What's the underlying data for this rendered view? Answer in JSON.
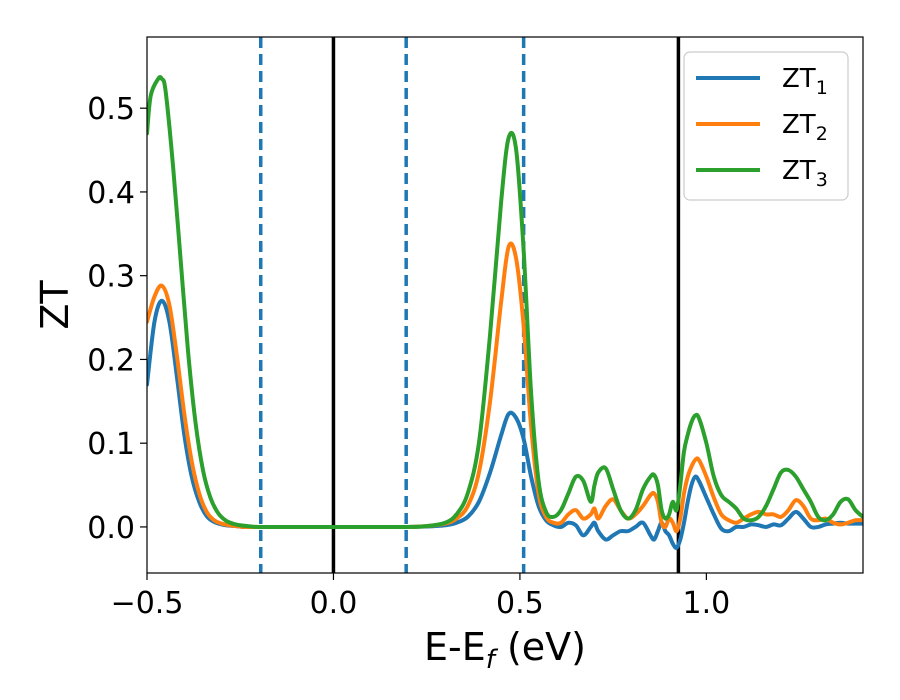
{
  "chart_data": {
    "type": "line",
    "xlabel": "E-E",
    "xlabel_sub": "f",
    "xlabel_tail": " (eV)",
    "ylabel": "ZT",
    "xlim": [
      -0.5,
      1.42
    ],
    "ylim": [
      -0.055,
      0.585
    ],
    "xticks": [
      -0.5,
      0.0,
      0.5,
      1.0
    ],
    "xtick_labels": [
      "−0.5",
      "0.0",
      "0.5",
      "1.0"
    ],
    "yticks": [
      0.0,
      0.1,
      0.2,
      0.3,
      0.4,
      0.5
    ],
    "ytick_labels": [
      "0.0",
      "0.1",
      "0.2",
      "0.3",
      "0.4",
      "0.5"
    ],
    "grid": false,
    "legend_position": "top-right",
    "vlines": [
      {
        "x": -0.195,
        "style": "dashed",
        "color": "#1f77b4"
      },
      {
        "x": 0.0,
        "style": "solid",
        "color": "#000000"
      },
      {
        "x": 0.195,
        "style": "dashed",
        "color": "#1f77b4"
      },
      {
        "x": 0.51,
        "style": "dashed",
        "color": "#1f77b4"
      },
      {
        "x": 0.925,
        "style": "solid",
        "color": "#000000"
      }
    ],
    "series": [
      {
        "name": "ZT",
        "name_sub": "1",
        "color": "#1f77b4",
        "x": [
          -0.5,
          -0.48,
          -0.46,
          -0.44,
          -0.42,
          -0.4,
          -0.38,
          -0.36,
          -0.34,
          -0.32,
          -0.3,
          -0.28,
          -0.26,
          -0.24,
          -0.2,
          -0.1,
          0.0,
          0.1,
          0.2,
          0.25,
          0.3,
          0.33,
          0.36,
          0.39,
          0.42,
          0.45,
          0.47,
          0.49,
          0.51,
          0.53,
          0.55,
          0.57,
          0.59,
          0.61,
          0.63,
          0.65,
          0.67,
          0.69,
          0.7,
          0.71,
          0.73,
          0.75,
          0.77,
          0.79,
          0.81,
          0.83,
          0.85,
          0.86,
          0.87,
          0.88,
          0.89,
          0.9,
          0.91,
          0.92,
          0.93,
          0.94,
          0.95,
          0.96,
          0.97,
          0.98,
          1.0,
          1.02,
          1.04,
          1.06,
          1.08,
          1.1,
          1.12,
          1.14,
          1.16,
          1.18,
          1.2,
          1.22,
          1.24,
          1.26,
          1.28,
          1.3,
          1.32,
          1.34,
          1.36,
          1.38,
          1.4,
          1.42
        ],
        "y": [
          0.17,
          0.245,
          0.27,
          0.245,
          0.18,
          0.11,
          0.06,
          0.03,
          0.013,
          0.006,
          0.003,
          0.0015,
          0.001,
          0.0,
          0.0,
          0.0,
          0.0,
          0.0,
          0.0,
          0.0005,
          0.002,
          0.005,
          0.012,
          0.03,
          0.065,
          0.11,
          0.135,
          0.13,
          0.105,
          0.06,
          0.025,
          0.008,
          0.002,
          0.0,
          0.005,
          0.002,
          -0.01,
          0.0,
          0.005,
          -0.005,
          -0.015,
          -0.01,
          -0.005,
          -0.005,
          0.0,
          0.005,
          -0.01,
          -0.015,
          -0.005,
          0.005,
          -0.005,
          -0.01,
          -0.02,
          -0.025,
          -0.015,
          0.005,
          0.03,
          0.05,
          0.06,
          0.055,
          0.035,
          0.015,
          -0.002,
          -0.005,
          0.0,
          0.0,
          0.003,
          0.002,
          0.0,
          0.003,
          0.002,
          0.01,
          0.018,
          0.01,
          0.0,
          0.0,
          0.003,
          0.004,
          0.005,
          0.004,
          0.004,
          0.004
        ]
      },
      {
        "name": "ZT",
        "name_sub": "2",
        "color": "#ff7f0e",
        "x": [
          -0.5,
          -0.48,
          -0.46,
          -0.44,
          -0.42,
          -0.4,
          -0.38,
          -0.36,
          -0.34,
          -0.32,
          -0.3,
          -0.28,
          -0.26,
          -0.24,
          -0.2,
          -0.1,
          0.0,
          0.1,
          0.2,
          0.25,
          0.3,
          0.33,
          0.36,
          0.39,
          0.42,
          0.45,
          0.47,
          0.49,
          0.51,
          0.53,
          0.55,
          0.57,
          0.59,
          0.61,
          0.63,
          0.65,
          0.67,
          0.69,
          0.7,
          0.71,
          0.73,
          0.75,
          0.77,
          0.79,
          0.81,
          0.83,
          0.85,
          0.86,
          0.87,
          0.88,
          0.89,
          0.9,
          0.91,
          0.92,
          0.93,
          0.94,
          0.95,
          0.96,
          0.97,
          0.98,
          1.0,
          1.02,
          1.04,
          1.06,
          1.08,
          1.1,
          1.12,
          1.14,
          1.16,
          1.18,
          1.2,
          1.22,
          1.24,
          1.26,
          1.28,
          1.3,
          1.32,
          1.34,
          1.36,
          1.38,
          1.4,
          1.42
        ],
        "y": [
          0.245,
          0.275,
          0.288,
          0.265,
          0.205,
          0.135,
          0.078,
          0.04,
          0.018,
          0.008,
          0.004,
          0.002,
          0.001,
          0.0,
          0.0,
          0.0,
          0.0,
          0.0,
          0.0,
          0.001,
          0.004,
          0.01,
          0.025,
          0.065,
          0.15,
          0.27,
          0.335,
          0.32,
          0.24,
          0.12,
          0.04,
          0.012,
          0.005,
          0.005,
          0.015,
          0.02,
          0.01,
          0.015,
          0.022,
          0.01,
          0.025,
          0.033,
          0.02,
          0.01,
          0.015,
          0.025,
          0.038,
          0.04,
          0.03,
          0.005,
          0.0,
          0.01,
          0.005,
          -0.005,
          0.01,
          0.04,
          0.06,
          0.072,
          0.08,
          0.08,
          0.06,
          0.035,
          0.015,
          0.008,
          0.005,
          0.01,
          0.015,
          0.018,
          0.015,
          0.015,
          0.012,
          0.02,
          0.032,
          0.025,
          0.01,
          0.008,
          0.01,
          0.005,
          0.003,
          0.005,
          0.008,
          0.008
        ]
      },
      {
        "name": "ZT",
        "name_sub": "3",
        "color": "#2ca02c",
        "x": [
          -0.5,
          -0.49,
          -0.47,
          -0.46,
          -0.45,
          -0.43,
          -0.41,
          -0.39,
          -0.37,
          -0.35,
          -0.33,
          -0.31,
          -0.29,
          -0.27,
          -0.25,
          -0.23,
          -0.2,
          -0.1,
          0.0,
          0.1,
          0.2,
          0.25,
          0.3,
          0.33,
          0.36,
          0.39,
          0.42,
          0.45,
          0.47,
          0.49,
          0.51,
          0.53,
          0.55,
          0.57,
          0.59,
          0.61,
          0.63,
          0.65,
          0.67,
          0.69,
          0.7,
          0.71,
          0.73,
          0.75,
          0.77,
          0.79,
          0.81,
          0.83,
          0.85,
          0.86,
          0.87,
          0.88,
          0.89,
          0.9,
          0.91,
          0.92,
          0.93,
          0.94,
          0.95,
          0.96,
          0.97,
          0.98,
          1.0,
          1.02,
          1.04,
          1.06,
          1.08,
          1.1,
          1.12,
          1.14,
          1.16,
          1.18,
          1.2,
          1.22,
          1.24,
          1.26,
          1.28,
          1.3,
          1.32,
          1.34,
          1.36,
          1.38,
          1.4,
          1.42
        ],
        "y": [
          0.47,
          0.515,
          0.535,
          0.535,
          0.52,
          0.43,
          0.32,
          0.21,
          0.125,
          0.068,
          0.035,
          0.017,
          0.008,
          0.004,
          0.002,
          0.001,
          0.0,
          0.0,
          0.0,
          0.0,
          0.0,
          0.001,
          0.005,
          0.015,
          0.04,
          0.1,
          0.23,
          0.39,
          0.465,
          0.45,
          0.33,
          0.16,
          0.055,
          0.018,
          0.012,
          0.02,
          0.04,
          0.06,
          0.055,
          0.03,
          0.05,
          0.065,
          0.07,
          0.045,
          0.02,
          0.01,
          0.02,
          0.045,
          0.06,
          0.062,
          0.05,
          0.02,
          0.01,
          0.015,
          0.03,
          0.02,
          0.05,
          0.09,
          0.11,
          0.125,
          0.133,
          0.13,
          0.1,
          0.06,
          0.038,
          0.03,
          0.022,
          0.01,
          0.008,
          0.012,
          0.025,
          0.045,
          0.065,
          0.068,
          0.06,
          0.045,
          0.03,
          0.012,
          0.008,
          0.015,
          0.03,
          0.033,
          0.02,
          0.012
        ]
      }
    ]
  }
}
